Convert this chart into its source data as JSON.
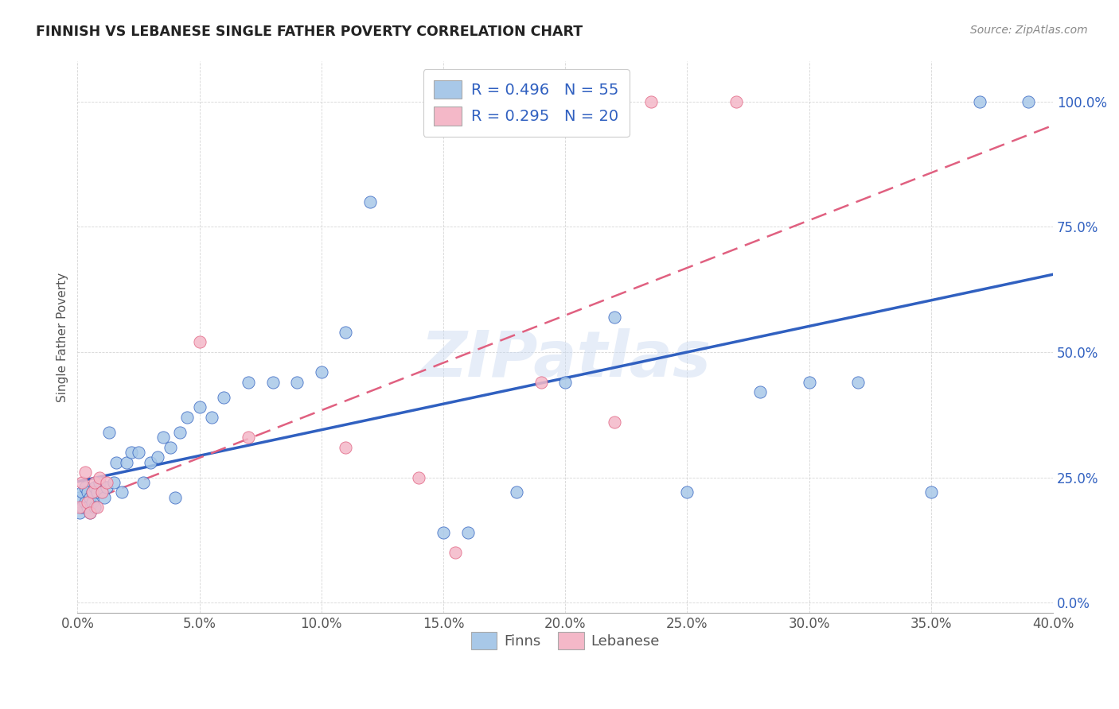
{
  "title": "FINNISH VS LEBANESE SINGLE FATHER POVERTY CORRELATION CHART",
  "source": "Source: ZipAtlas.com",
  "ylabel_label": "Single Father Poverty",
  "xlim": [
    0.0,
    0.4
  ],
  "ylim": [
    -0.02,
    1.08
  ],
  "xticks": [
    0.0,
    0.05,
    0.1,
    0.15,
    0.2,
    0.25,
    0.3,
    0.35,
    0.4
  ],
  "yticks": [
    0.0,
    0.25,
    0.5,
    0.75,
    1.0
  ],
  "finn_color": "#a8c8e8",
  "leb_color": "#f4b8c8",
  "finn_line_color": "#3060c0",
  "leb_line_color": "#e06080",
  "finn_R": 0.496,
  "finn_N": 55,
  "leb_R": 0.295,
  "leb_N": 20,
  "watermark": "ZIPatlas",
  "finns_x": [
    0.001,
    0.001,
    0.002,
    0.002,
    0.003,
    0.003,
    0.004,
    0.004,
    0.005,
    0.005,
    0.006,
    0.006,
    0.007,
    0.007,
    0.008,
    0.009,
    0.01,
    0.011,
    0.012,
    0.013,
    0.015,
    0.016,
    0.018,
    0.02,
    0.022,
    0.025,
    0.027,
    0.03,
    0.033,
    0.035,
    0.038,
    0.04,
    0.042,
    0.045,
    0.05,
    0.055,
    0.06,
    0.07,
    0.08,
    0.09,
    0.1,
    0.11,
    0.12,
    0.15,
    0.16,
    0.18,
    0.2,
    0.22,
    0.25,
    0.28,
    0.3,
    0.32,
    0.35,
    0.37,
    0.39
  ],
  "finns_y": [
    0.18,
    0.21,
    0.19,
    0.22,
    0.2,
    0.23,
    0.19,
    0.22,
    0.18,
    0.21,
    0.2,
    0.22,
    0.19,
    0.23,
    0.22,
    0.24,
    0.22,
    0.21,
    0.23,
    0.34,
    0.24,
    0.28,
    0.22,
    0.28,
    0.3,
    0.3,
    0.24,
    0.28,
    0.29,
    0.33,
    0.31,
    0.21,
    0.34,
    0.37,
    0.39,
    0.37,
    0.41,
    0.44,
    0.44,
    0.44,
    0.46,
    0.54,
    0.8,
    0.14,
    0.14,
    0.22,
    0.44,
    0.57,
    0.22,
    0.42,
    0.44,
    0.44,
    0.22,
    1.0,
    1.0
  ],
  "lebanese_x": [
    0.001,
    0.002,
    0.003,
    0.004,
    0.005,
    0.006,
    0.007,
    0.008,
    0.009,
    0.01,
    0.012,
    0.05,
    0.07,
    0.11,
    0.14,
    0.155,
    0.19,
    0.22,
    0.235,
    0.27
  ],
  "lebanese_y": [
    0.19,
    0.24,
    0.26,
    0.2,
    0.18,
    0.22,
    0.24,
    0.19,
    0.25,
    0.22,
    0.24,
    0.52,
    0.33,
    0.31,
    0.25,
    0.1,
    0.44,
    0.36,
    1.0,
    1.0
  ]
}
